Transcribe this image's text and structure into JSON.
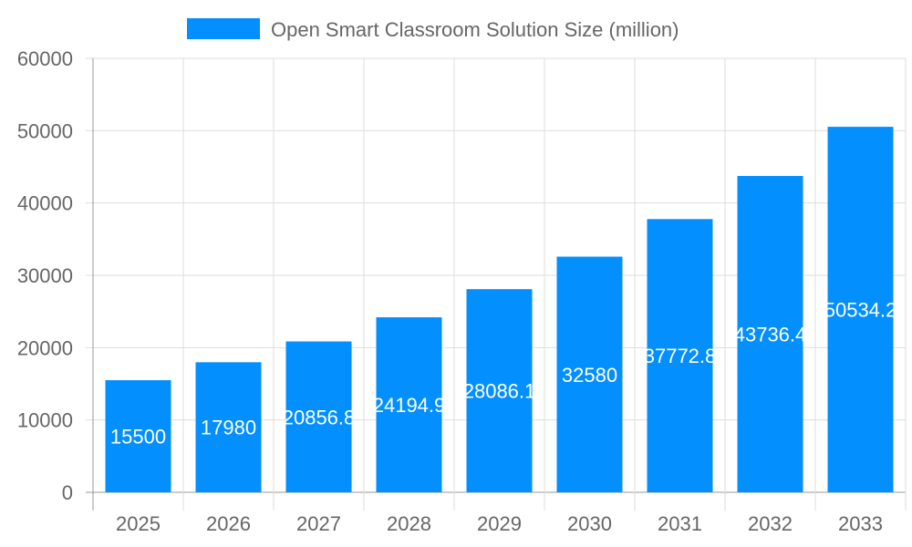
{
  "chart_data": {
    "type": "bar",
    "categories": [
      "2025",
      "2026",
      "2027",
      "2028",
      "2029",
      "2030",
      "2031",
      "2032",
      "2033"
    ],
    "series": [
      {
        "name": "Open Smart Classroom Solution Size (million)",
        "values": [
          15500,
          17980,
          20856.8,
          24194.9,
          28086.1,
          32580,
          37772.8,
          43736.4,
          50534.2
        ],
        "color": "#038ffd"
      }
    ],
    "yticks": [
      0,
      10000,
      20000,
      30000,
      40000,
      50000,
      60000
    ],
    "ylim": [
      0,
      60000
    ],
    "grid": true,
    "legend": "top",
    "data_labels": true,
    "data_label_color": "#ffffff"
  }
}
